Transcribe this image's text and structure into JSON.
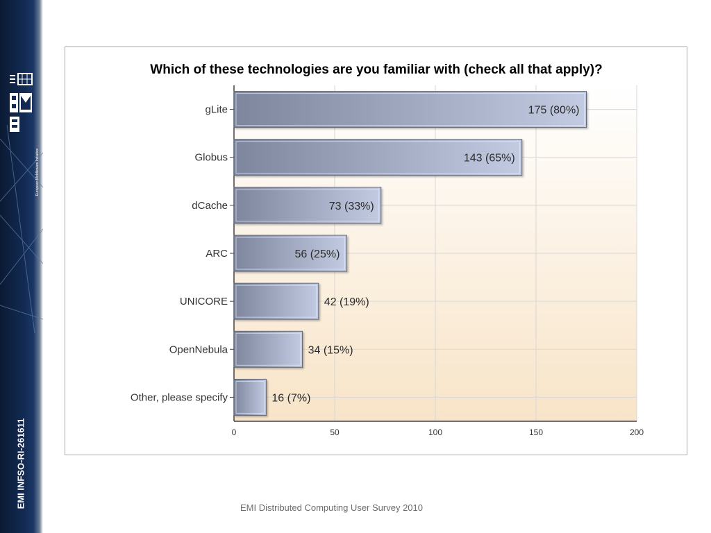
{
  "sidebar": {
    "logo_icon": "emi-logo-icon",
    "tagline": "European Middleware Initiative",
    "code": "EMI INFSO-RI-261611"
  },
  "footer": {
    "text": "EMI Distributed Computing User Survey 2010"
  },
  "colors": {
    "bar_dark": "#7e869e",
    "bar_light": "#c3cbe2",
    "bar_border": "#5f6577",
    "plot_top": "#ffffff",
    "plot_bottom": "#f8e4c8",
    "grid": "#d7d7d7",
    "sidebar": "#122a52"
  },
  "chart_data": {
    "type": "bar",
    "orientation": "horizontal",
    "title": "Which of these technologies are you familiar with (check all that apply)?",
    "categories": [
      "gLite",
      "Globus",
      "dCache",
      "ARC",
      "UNICORE",
      "OpenNebula",
      "Other, please specify"
    ],
    "values": [
      175,
      143,
      73,
      56,
      42,
      34,
      16
    ],
    "value_labels": [
      "175 (80%)",
      "143 (65%)",
      "73 (33%)",
      "56 (25%)",
      "42 (19%)",
      "34 (15%)",
      "16 (7%)"
    ],
    "xlim": [
      0,
      200
    ],
    "xticks": [
      0,
      50,
      100,
      150,
      200
    ],
    "xtick_labels": [
      "0",
      "50",
      "100",
      "150",
      "200"
    ],
    "grid": true,
    "legend": false
  }
}
